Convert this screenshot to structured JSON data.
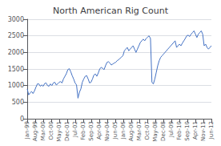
{
  "chart_data": {
    "type": "line",
    "title": "North American Rig Count",
    "color": "#4472C4",
    "x": [
      0,
      0.181102,
      0.362205,
      0.543307,
      0.724409,
      0.905512,
      1.086614,
      1.267717,
      1.448819,
      1.629921,
      1.811024,
      1.992126,
      2.173228,
      2.354331,
      2.535433,
      2.716535,
      2.897638,
      3.07874,
      3.259843,
      3.440945,
      3.622047,
      3.80315,
      3.984252,
      4.165354,
      4.346457,
      4.527559,
      4.708661,
      4.889764,
      5.070866,
      5.251969,
      5.433071,
      5.614173,
      5.795276,
      5.976378,
      6.15748,
      6.338583,
      6.519685,
      6.700787,
      6.88189,
      7.062992,
      7.244094,
      7.425197,
      7.606299,
      7.787402,
      7.968504,
      8.149606,
      8.330709,
      8.511811,
      8.692913,
      8.874016,
      9.055118,
      9.23622,
      9.417323,
      9.598425,
      9.779528,
      9.96063,
      10.141732,
      10.322835,
      10.503937,
      10.685039,
      10.866142,
      11.047244,
      11.228346,
      11.409449,
      11.590551,
      11.771654,
      11.952756,
      12.133858,
      12.314961,
      12.496063,
      12.677165,
      12.858268,
      13.03937,
      13.220472,
      13.401575,
      13.582677,
      13.76378,
      13.944882,
      14.125984,
      14.307087,
      14.488189,
      14.669291,
      14.850394,
      15.031496,
      15.212598,
      15.393701,
      15.574803,
      15.755906,
      15.937008,
      16.11811,
      16.299213,
      16.480315,
      16.661417,
      16.84252,
      17.023622,
      17.204724,
      17.385827,
      17.566929,
      17.748031,
      17.929134,
      18.110236,
      18.291339,
      18.472441,
      18.653543,
      18.834646,
      19.015748,
      19.19685,
      19.377953,
      19.559055,
      19.740157,
      19.92126,
      20.102362,
      20.283465,
      20.464567,
      20.645669,
      20.826772,
      21.007874,
      21.188976,
      21.370079,
      21.551181,
      21.732283,
      21.913386,
      22.094488,
      22.275591,
      22.456693,
      22.637795,
      22.818898,
      23
    ],
    "values": [
      900,
      720,
      780,
      820,
      760,
      840,
      950,
      1050,
      1050,
      980,
      1020,
      980,
      1060,
      1080,
      1000,
      980,
      1050,
      1000,
      1080,
      1100,
      1020,
      1050,
      1100,
      1120,
      1080,
      1200,
      1280,
      1360,
      1480,
      1510,
      1420,
      1300,
      1200,
      1080,
      1020,
      620,
      800,
      900,
      1100,
      1200,
      1280,
      1300,
      1200,
      1080,
      1100,
      1200,
      1320,
      1350,
      1280,
      1380,
      1500,
      1550,
      1520,
      1480,
      1600,
      1700,
      1720,
      1680,
      1620,
      1650,
      1680,
      1700,
      1750,
      1780,
      1820,
      1860,
      1900,
      2050,
      2100,
      2150,
      2050,
      2100,
      2150,
      2200,
      2100,
      2000,
      2100,
      2200,
      2300,
      2350,
      2400,
      2350,
      2420,
      2460,
      2500,
      2420,
      1100,
      1050,
      1200,
      1400,
      1600,
      1750,
      1850,
      1900,
      1950,
      2000,
      2050,
      2100,
      2150,
      2200,
      2250,
      2300,
      2350,
      2150,
      2200,
      2250,
      2200,
      2280,
      2350,
      2420,
      2500,
      2520,
      2480,
      2550,
      2600,
      2650,
      2550,
      2450,
      2550,
      2600,
      2650,
      2550,
      2200,
      2250,
      2150,
      2100,
      2150,
      2200
    ],
    "xlim": [
      0,
      23
    ],
    "xticks": [
      {
        "value": 0,
        "label": "Jan-99"
      },
      {
        "value": 1,
        "label": "Aug-99"
      },
      {
        "value": 2,
        "label": "Mar-00"
      },
      {
        "value": 3,
        "label": "Oct-00"
      },
      {
        "value": 4,
        "label": "May-01"
      },
      {
        "value": 5,
        "label": "Dec-01"
      },
      {
        "value": 6,
        "label": "Jul-02"
      },
      {
        "value": 7,
        "label": "Feb-03"
      },
      {
        "value": 8,
        "label": "Sep-03"
      },
      {
        "value": 9,
        "label": "Apr-04"
      },
      {
        "value": 10,
        "label": "Nov-04"
      },
      {
        "value": 11,
        "label": "Jun-05"
      },
      {
        "value": 12,
        "label": "Jan-06"
      },
      {
        "value": 13,
        "label": "Aug-06"
      },
      {
        "value": 14,
        "label": "Mar-07"
      },
      {
        "value": 15,
        "label": "Oct-07"
      },
      {
        "value": 16,
        "label": "May-08"
      },
      {
        "value": 17,
        "label": "Dec-08"
      },
      {
        "value": 18,
        "label": "Jul-09"
      },
      {
        "value": 19,
        "label": "Feb-10"
      },
      {
        "value": 20,
        "label": "Sep-10"
      },
      {
        "value": 21,
        "label": "Apr-11"
      },
      {
        "value": 22,
        "label": "Nov-11"
      },
      {
        "value": 23,
        "label": "Jun-12"
      }
    ],
    "ylim": [
      0,
      3000
    ],
    "yticks": [
      0,
      500,
      1000,
      1500,
      2000,
      2500,
      3000
    ],
    "grid": true
  }
}
